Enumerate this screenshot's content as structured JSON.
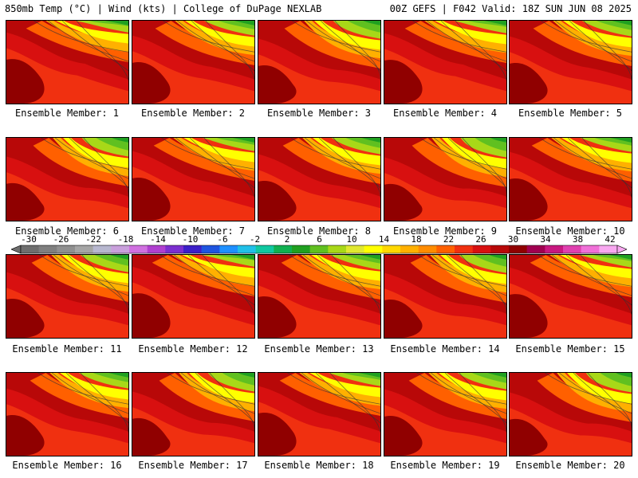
{
  "header": {
    "left_title": "850mb Temp (°C) | Wind (kts) | College of DuPage NEXLAB",
    "right_title": "00Z GEFS | F042 Valid: 18Z SUN JUN 08 2025"
  },
  "panels": [
    {
      "label": "Ensemble Member: 1"
    },
    {
      "label": "Ensemble Member: 2"
    },
    {
      "label": "Ensemble Member: 3"
    },
    {
      "label": "Ensemble Member: 4"
    },
    {
      "label": "Ensemble Member: 5"
    },
    {
      "label": "Ensemble Member: 6"
    },
    {
      "label": "Ensemble Member: 7"
    },
    {
      "label": "Ensemble Member: 8"
    },
    {
      "label": "Ensemble Member: 9"
    },
    {
      "label": "Ensemble Member: 10"
    },
    {
      "label": "Ensemble Member: 11"
    },
    {
      "label": "Ensemble Member: 12"
    },
    {
      "label": "Ensemble Member: 13"
    },
    {
      "label": "Ensemble Member: 14"
    },
    {
      "label": "Ensemble Member: 15"
    },
    {
      "label": "Ensemble Member: 16"
    },
    {
      "label": "Ensemble Member: 17"
    },
    {
      "label": "Ensemble Member: 18"
    },
    {
      "label": "Ensemble Member: 19"
    },
    {
      "label": "Ensemble Member: 20"
    }
  ],
  "colorbar": {
    "ticks": [
      "-30",
      "-26",
      "-22",
      "-18",
      "-14",
      "-10",
      "-6",
      "-2",
      "2",
      "6",
      "10",
      "14",
      "18",
      "22",
      "26",
      "30",
      "34",
      "38",
      "42"
    ],
    "colors": [
      "#6e6e6e",
      "#7f7f7f",
      "#909090",
      "#a5a5a5",
      "#b7b7cf",
      "#c9a0dc",
      "#d070e0",
      "#b040d0",
      "#7b2fd0",
      "#3c1fc8",
      "#1f55e0",
      "#1e90ff",
      "#20c0e8",
      "#10c8a0",
      "#10b050",
      "#20a020",
      "#60c020",
      "#a8d818",
      "#e0e830",
      "#ffff00",
      "#ffd800",
      "#ffb000",
      "#ff8c00",
      "#ff6000",
      "#f03010",
      "#d81010",
      "#b80808",
      "#900000",
      "#a00050",
      "#c81880",
      "#e040b0",
      "#f070d8",
      "#f8a8f0"
    ]
  }
}
